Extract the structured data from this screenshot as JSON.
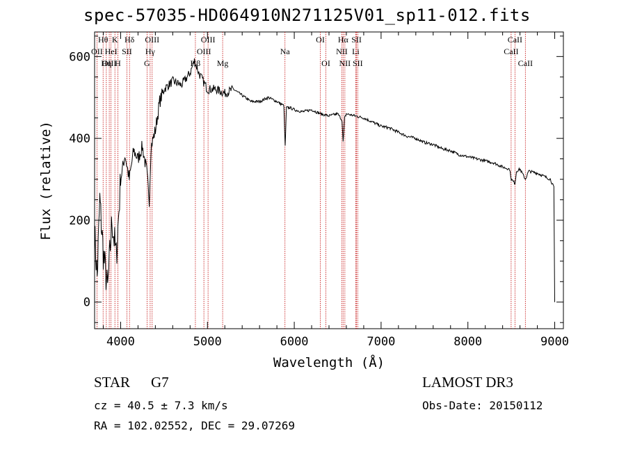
{
  "title": "spec-57035-HD064910N271125V01_sp11-012.fits",
  "info": {
    "object_class": "STAR",
    "subclass": "G7",
    "survey": "LAMOST DR3",
    "cz_line": "cz = 40.5 ± 7.3 km/s",
    "obs_date_line": "Obs-Date: 20150112",
    "radec_line": "RA = 102.02552, DEC =  29.07269"
  },
  "chart_data": {
    "type": "line",
    "title": "spec-57035-HD064910N271125V01_sp11-012.fits",
    "xlabel": "Wavelength (Å)",
    "ylabel": "Flux (relative)",
    "xlim": [
      3700,
      9100
    ],
    "ylim": [
      -65,
      660
    ],
    "xticks": [
      4000,
      5000,
      6000,
      7000,
      8000,
      9000
    ],
    "yticks": [
      0,
      200,
      400,
      600
    ],
    "grid": false,
    "series": [
      {
        "name": "spectrum",
        "x": [
          3700,
          3730,
          3760,
          3800,
          3850,
          3900,
          3950,
          4000,
          4050,
          4100,
          4150,
          4200,
          4250,
          4300,
          4330,
          4350,
          4400,
          4450,
          4500,
          4600,
          4700,
          4800,
          4850,
          4900,
          4950,
          5000,
          5100,
          5200,
          5300,
          5400,
          5500,
          5600,
          5700,
          5800,
          5880,
          5895,
          5910,
          5950,
          6000,
          6100,
          6200,
          6300,
          6400,
          6500,
          6550,
          6563,
          6580,
          6600,
          6700,
          6800,
          6900,
          7000,
          7100,
          7200,
          7300,
          7400,
          7500,
          7600,
          7700,
          7800,
          7900,
          8000,
          8100,
          8200,
          8300,
          8400,
          8480,
          8500,
          8542,
          8560,
          8600,
          8662,
          8700,
          8800,
          8900,
          8950,
          8990,
          9000
        ],
        "y": [
          170,
          60,
          250,
          120,
          30,
          200,
          110,
          300,
          360,
          300,
          370,
          350,
          380,
          320,
          250,
          380,
          420,
          490,
          520,
          540,
          530,
          560,
          590,
          560,
          540,
          520,
          520,
          510,
          520,
          505,
          490,
          490,
          500,
          490,
          480,
          380,
          475,
          475,
          470,
          465,
          470,
          460,
          455,
          460,
          445,
          390,
          450,
          460,
          455,
          450,
          440,
          430,
          425,
          415,
          405,
          400,
          390,
          385,
          375,
          370,
          360,
          355,
          350,
          345,
          340,
          330,
          325,
          300,
          290,
          320,
          325,
          300,
          320,
          315,
          305,
          300,
          280,
          0
        ]
      }
    ],
    "lines": [
      {
        "name": "Hθ",
        "wavelength": 3798,
        "row": 0
      },
      {
        "name": "OII",
        "wavelength": 3727,
        "row": 1
      },
      {
        "name": "OIII",
        "wavelength": 3869,
        "row": 2
      },
      {
        "name": "K",
        "wavelength": 3934,
        "row": 0
      },
      {
        "name": "HeI",
        "wavelength": 3889,
        "row": 1
      },
      {
        "name": "Hη",
        "wavelength": 3835,
        "row": 2
      },
      {
        "name": "SII",
        "wavelength": 4072,
        "row": 1
      },
      {
        "name": "H",
        "wavelength": 3968,
        "row": 2
      },
      {
        "name": "Hδ",
        "wavelength": 4102,
        "row": 0
      },
      {
        "name": "OIII",
        "wavelength": 4363,
        "row": 0
      },
      {
        "name": "Hγ",
        "wavelength": 4340,
        "row": 1
      },
      {
        "name": "G",
        "wavelength": 4304,
        "row": 2
      },
      {
        "name": "Hβ",
        "wavelength": 4861,
        "row": 2
      },
      {
        "name": "OIII",
        "wavelength": 5007,
        "row": 0
      },
      {
        "name": "OIII",
        "wavelength": 4959,
        "row": 1
      },
      {
        "name": "Mg",
        "wavelength": 5175,
        "row": 2
      },
      {
        "name": "Na",
        "wavelength": 5893,
        "row": 1
      },
      {
        "name": "OI",
        "wavelength": 6300,
        "row": 0
      },
      {
        "name": "OI",
        "wavelength": 6364,
        "row": 2
      },
      {
        "name": "Hα",
        "wavelength": 6563,
        "row": 0
      },
      {
        "name": "NII",
        "wavelength": 6548,
        "row": 1
      },
      {
        "name": "NII",
        "wavelength": 6583,
        "row": 2
      },
      {
        "name": "SII",
        "wavelength": 6717,
        "row": 0
      },
      {
        "name": "Li",
        "wavelength": 6708,
        "row": 1
      },
      {
        "name": "SII",
        "wavelength": 6731,
        "row": 2
      },
      {
        "name": "CaII",
        "wavelength": 8542,
        "row": 0
      },
      {
        "name": "CaII",
        "wavelength": 8498,
        "row": 1
      },
      {
        "name": "CaII",
        "wavelength": 8662,
        "row": 2
      }
    ]
  }
}
